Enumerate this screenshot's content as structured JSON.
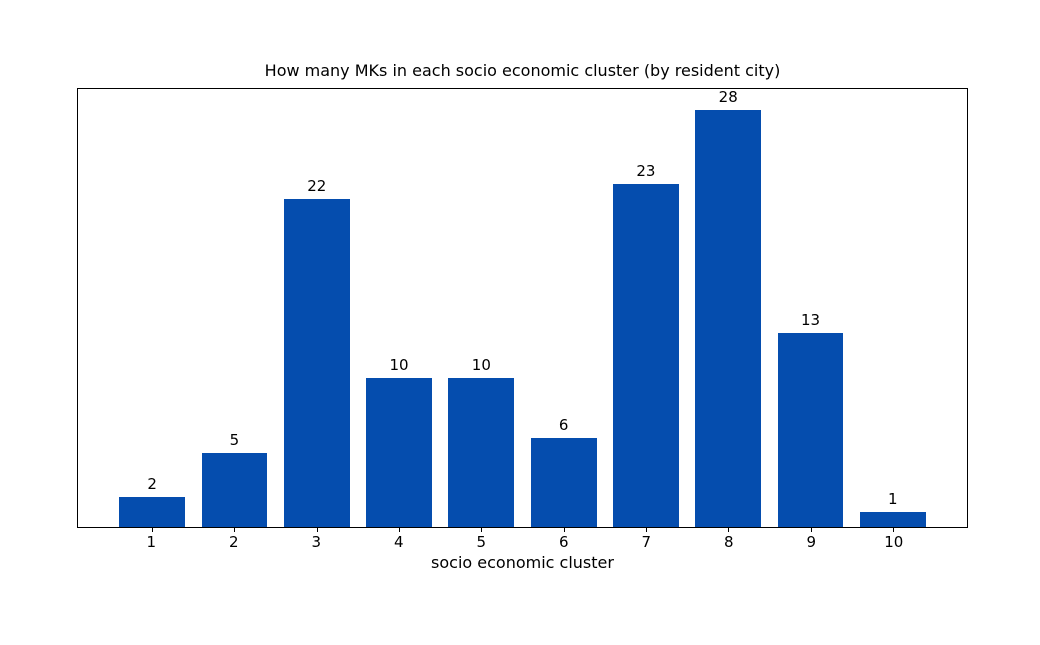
{
  "chart_data": {
    "type": "bar",
    "title": "How many MKs in each socio economic cluster (by resident city)",
    "xlabel": "socio economic cluster",
    "ylabel": "",
    "categories": [
      "1",
      "2",
      "3",
      "4",
      "5",
      "6",
      "7",
      "8",
      "9",
      "10"
    ],
    "values": [
      2,
      5,
      22,
      10,
      10,
      6,
      23,
      28,
      13,
      1
    ],
    "value_labels": [
      "2",
      "5",
      "22",
      "10",
      "10",
      "6",
      "23",
      "28",
      "13",
      "1"
    ],
    "bar_color": "#054dae",
    "spine_color": "#000000",
    "text_color": "#000000",
    "background_color": "#ffffff",
    "ylim": [
      0,
      29.4
    ],
    "grid": false,
    "legend": null,
    "y_axis_ticks_shown": false,
    "value_labels_shown": true
  }
}
